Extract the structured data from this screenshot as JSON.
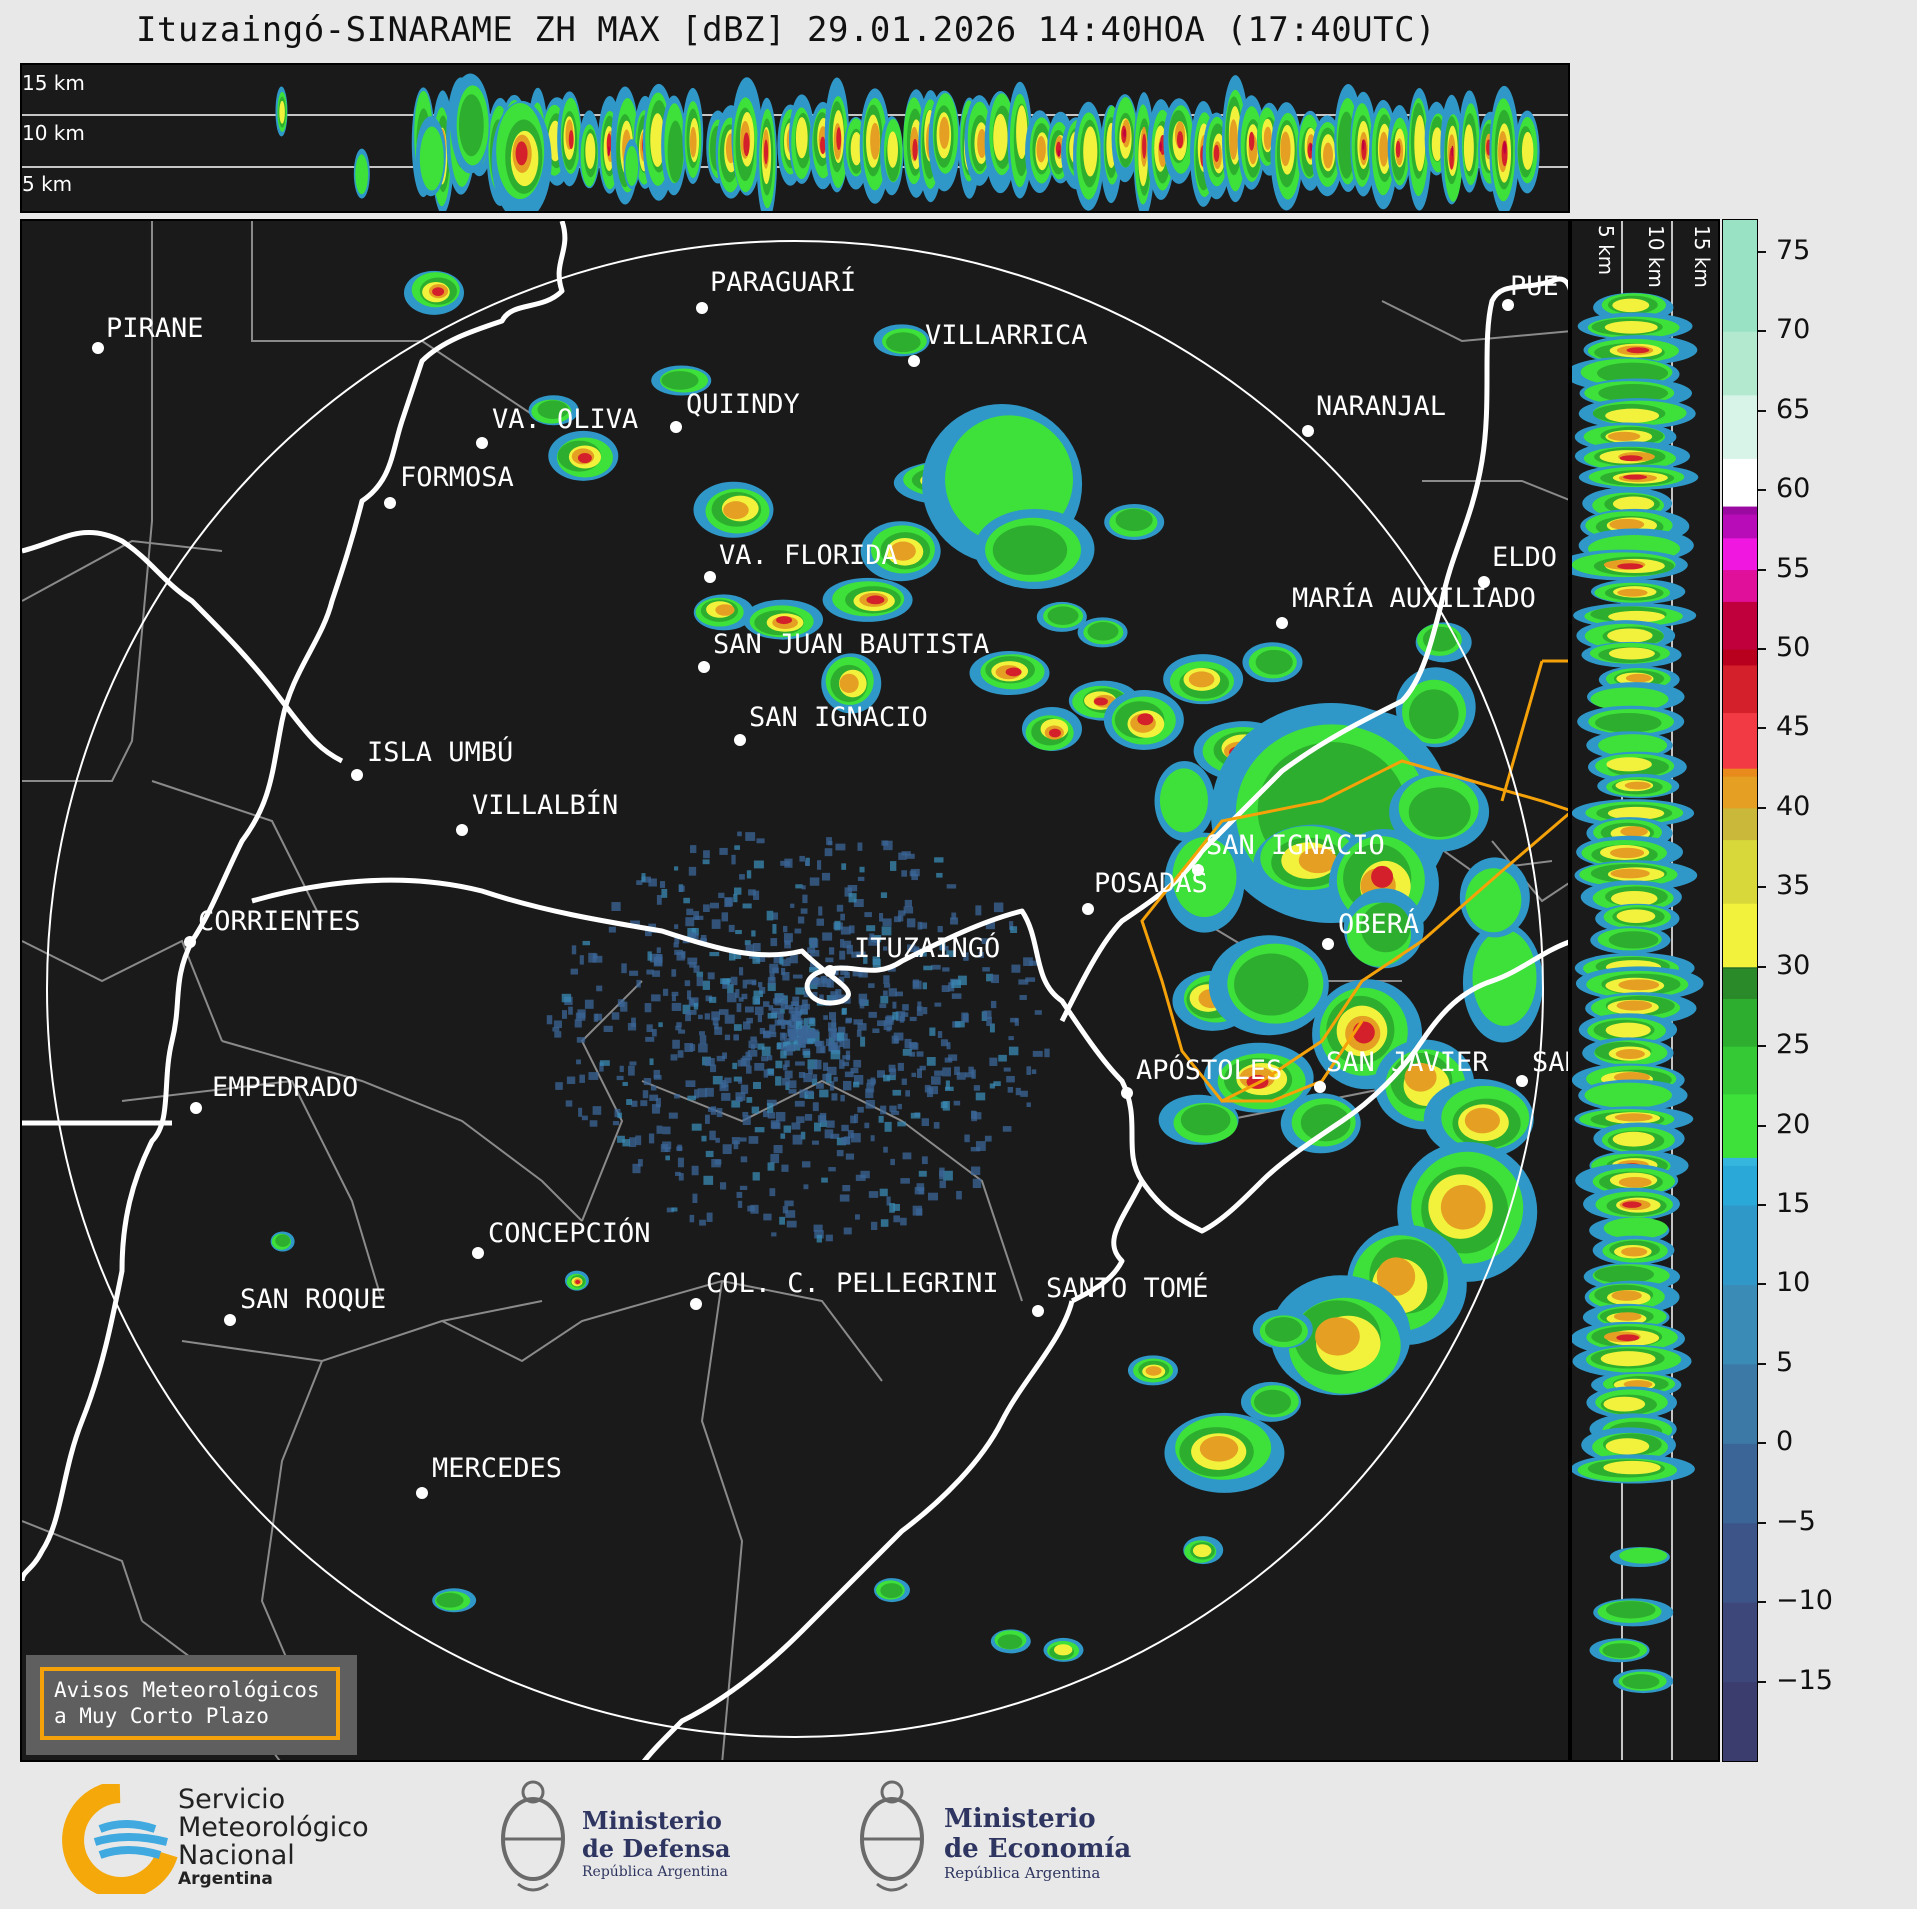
{
  "title": "Ituzaingó-SINARAME ZH MAX [dBZ] 29.01.2026 14:40HOA (17:40UTC)",
  "altitude_labels": [
    "15 km",
    "10 km",
    "5 km"
  ],
  "side_altitude_labels": [
    "5 km",
    "10 km",
    "15 km"
  ],
  "colorbar": {
    "ticks": [
      "75",
      "70",
      "65",
      "60",
      "55",
      "50",
      "45",
      "40",
      "35",
      "30",
      "25",
      "20",
      "15",
      "10",
      "5",
      "0",
      "−5",
      "−10",
      "−15"
    ],
    "range": [
      -20,
      77
    ]
  },
  "cities": [
    {
      "name": "PARAGUARÍ"
    },
    {
      "name": "VILLARRICA"
    },
    {
      "name": "PIRANE"
    },
    {
      "name": "QUIINDY"
    },
    {
      "name": "VA. OLIVA"
    },
    {
      "name": "NARANJAL"
    },
    {
      "name": "FORMOSA"
    },
    {
      "name": "PUE"
    },
    {
      "name": "VA. FLORIDA"
    },
    {
      "name": "ELDO"
    },
    {
      "name": "MARÍA AUXILIADO"
    },
    {
      "name": "SAN JUAN BAUTISTA"
    },
    {
      "name": "SAN IGNACIO"
    },
    {
      "name": "ISLA UMBÚ"
    },
    {
      "name": "VILLALBÍN"
    },
    {
      "name": "SAN IGNACIO"
    },
    {
      "name": "POSADAS"
    },
    {
      "name": "CORRIENTES"
    },
    {
      "name": "OBERÁ"
    },
    {
      "name": "ITUZAINGÓ"
    },
    {
      "name": "APÓSTOLES"
    },
    {
      "name": "SAN JAVIER"
    },
    {
      "name": "SAN"
    },
    {
      "name": "EMPEDRADO"
    },
    {
      "name": "CONCEPCIÓN"
    },
    {
      "name": "COL. C. PELLEGRINI"
    },
    {
      "name": "SANTO TOMÉ"
    },
    {
      "name": "SAN ROQUE"
    },
    {
      "name": "MERCEDES"
    }
  ],
  "warning": {
    "line1": "Avisos Meteorológicos",
    "line2": "a Muy Corto Plazo"
  },
  "logos": {
    "smn": [
      "Servicio",
      "Meteorológico",
      "Nacional",
      "Argentina"
    ],
    "defensa": [
      "Ministerio",
      "de Defensa",
      "República Argentina"
    ],
    "economia": [
      "Ministerio",
      "de Economía",
      "República Argentina"
    ]
  },
  "colors": {
    "accent": "#f5a20a",
    "background": "#1a1a1a"
  }
}
